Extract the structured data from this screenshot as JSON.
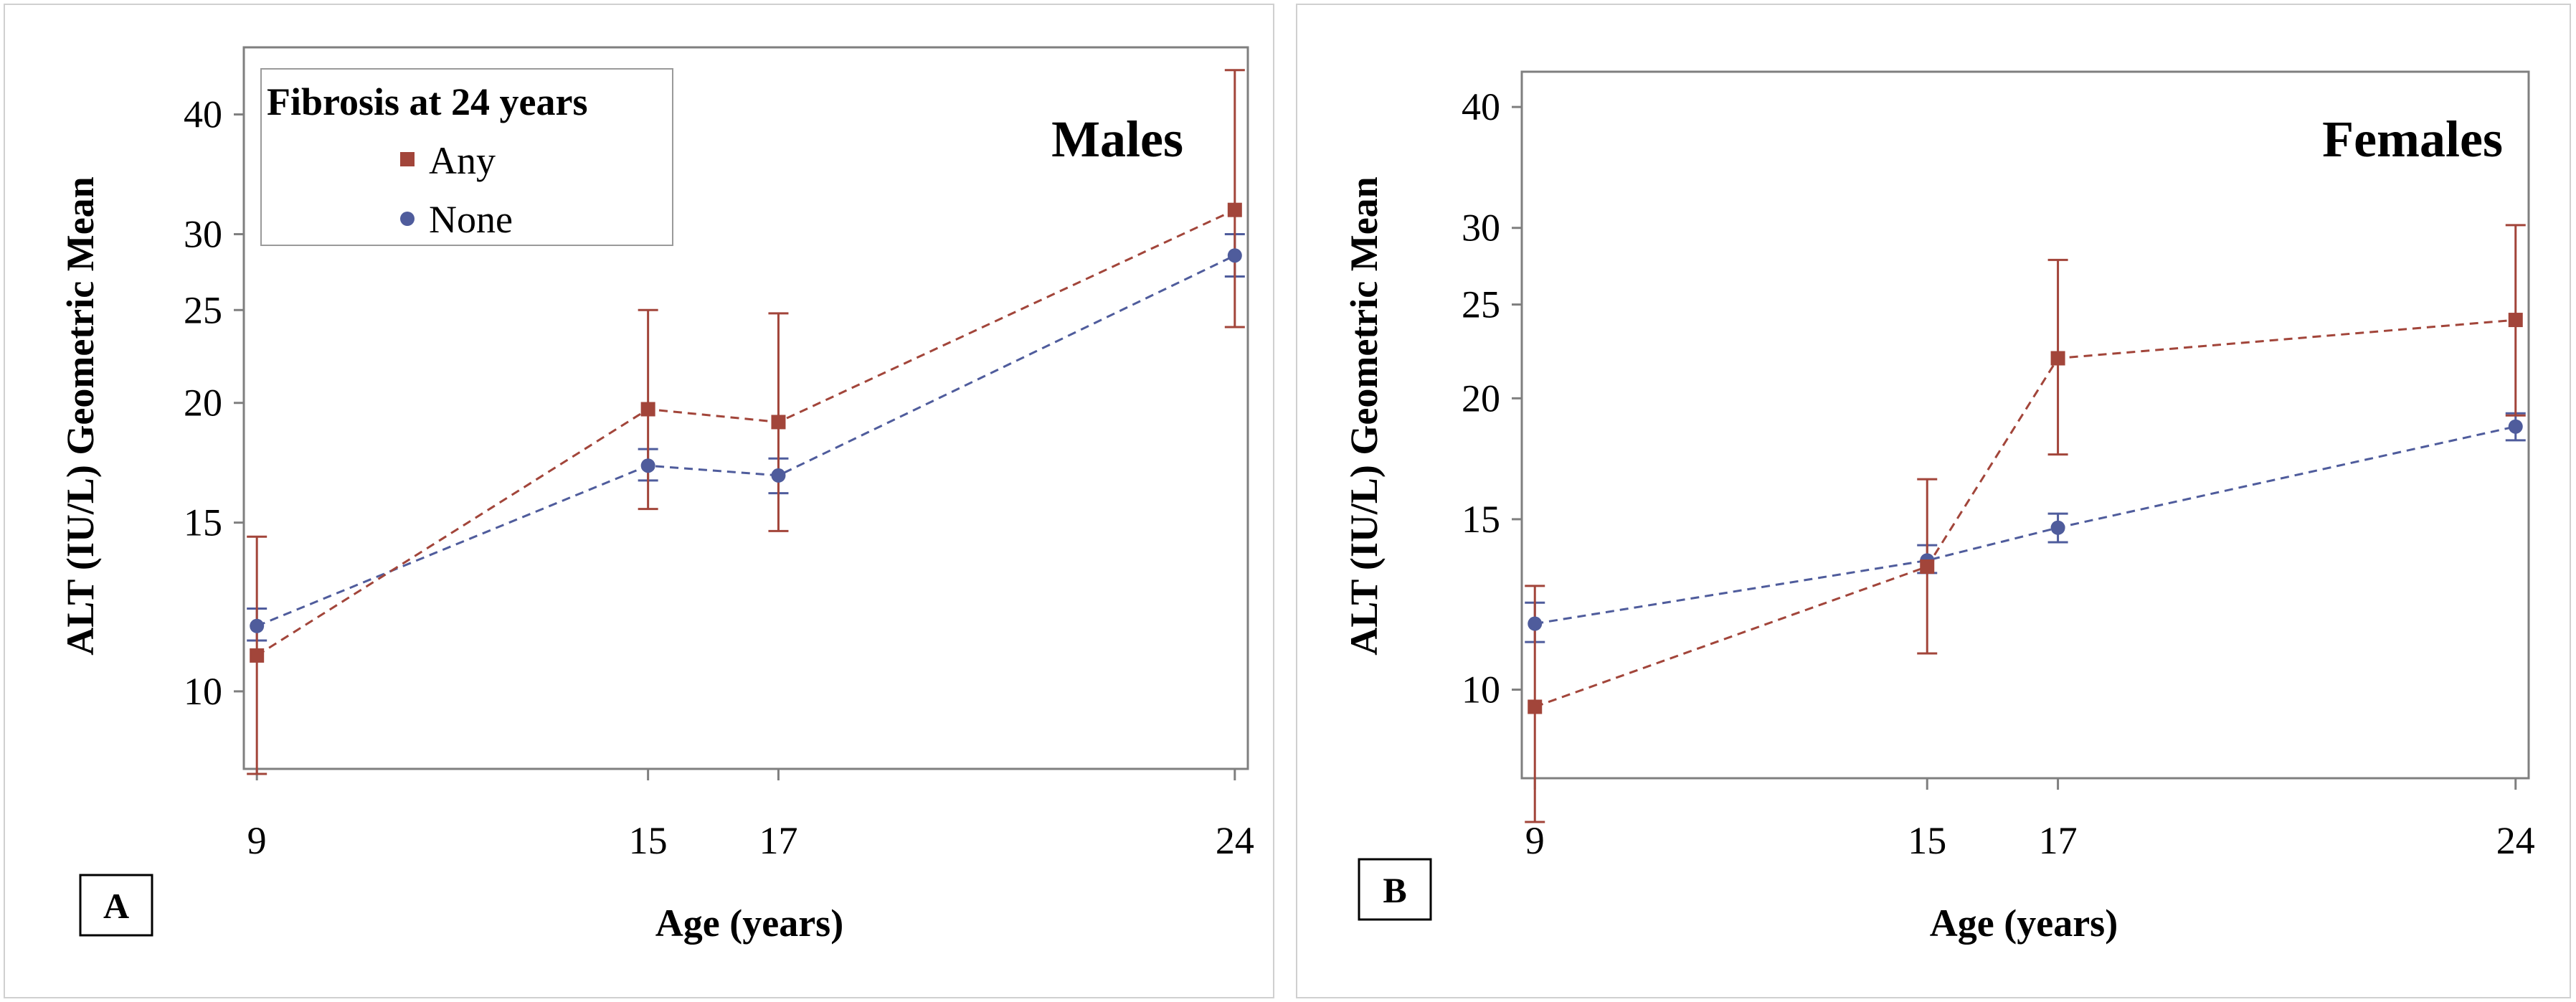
{
  "colors": {
    "any": "#a2453a",
    "none": "#4f5c9c"
  },
  "legend": {
    "title": "Fibrosis at 24 years",
    "items": [
      {
        "key": "any",
        "label": "Any",
        "marker": "square"
      },
      {
        "key": "none",
        "label": "None",
        "marker": "circle"
      }
    ]
  },
  "chart_data": [
    {
      "type": "line",
      "panel_label": "A",
      "title": "Males",
      "xlabel": "Age (years)",
      "ylabel": "ALT (IU/L) Geometric Mean",
      "x": [
        9,
        15,
        17,
        24
      ],
      "x_ticks": [
        "9",
        "15",
        "17",
        "24"
      ],
      "y_ticks": [
        "10",
        "15",
        "20",
        "25",
        "30",
        "40"
      ],
      "y_scale": "log",
      "xlim": [
        8.8,
        24.2
      ],
      "ylim": [
        8.3,
        47.0
      ],
      "series": [
        {
          "name": "Any",
          "key": "any",
          "values": [
            10.9,
            19.7,
            19.1,
            31.8
          ],
          "ci_lower": [
            8.2,
            15.5,
            14.7,
            24.0
          ],
          "ci_upper": [
            14.5,
            25.0,
            24.8,
            44.5
          ]
        },
        {
          "name": "None",
          "key": "none",
          "values": [
            11.7,
            17.2,
            16.8,
            28.5
          ],
          "ci_lower": [
            11.3,
            16.6,
            16.1,
            27.1
          ],
          "ci_upper": [
            12.2,
            17.9,
            17.5,
            30.0
          ]
        }
      ]
    },
    {
      "type": "line",
      "panel_label": "B",
      "title": "Females",
      "xlabel": "Age (years)",
      "ylabel": "ALT (IU/L) Geometric Mean",
      "x": [
        9,
        15,
        17,
        24
      ],
      "x_ticks": [
        "9",
        "15",
        "17",
        "24"
      ],
      "y_ticks": [
        "10",
        "15",
        "20",
        "25",
        "30",
        "40"
      ],
      "y_scale": "log",
      "xlim": [
        8.8,
        24.2
      ],
      "ylim": [
        8.1,
        43.5
      ],
      "series": [
        {
          "name": "Any",
          "key": "any",
          "values": [
            9.6,
            13.4,
            22.0,
            24.1
          ],
          "ci_lower": [
            7.3,
            10.9,
            17.5,
            19.2
          ],
          "ci_upper": [
            12.8,
            16.5,
            27.8,
            30.2
          ]
        },
        {
          "name": "None",
          "key": "none",
          "values": [
            11.7,
            13.6,
            14.7,
            18.7
          ],
          "ci_lower": [
            11.2,
            13.2,
            14.2,
            18.1
          ],
          "ci_upper": [
            12.3,
            14.1,
            15.2,
            19.3
          ]
        }
      ]
    }
  ]
}
